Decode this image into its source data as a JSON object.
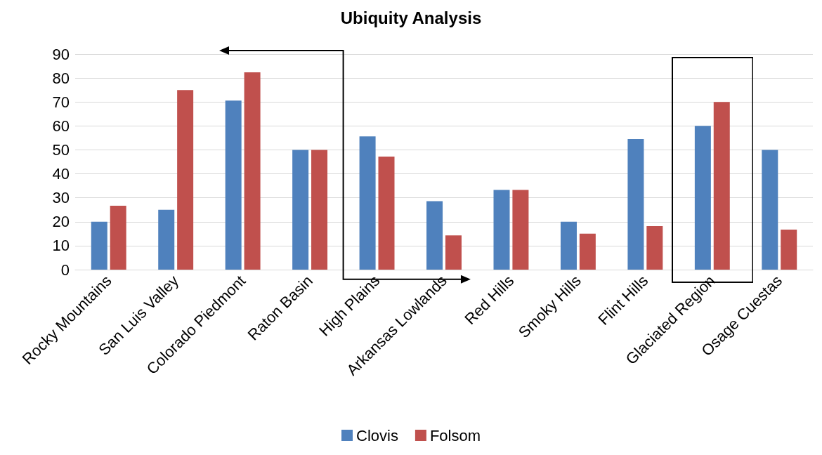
{
  "chart_data": {
    "type": "bar",
    "title": "Ubiquity Analysis",
    "categories": [
      "Rocky Mountains",
      "San Luis Valley",
      "Colorado Piedmont",
      "Raton Basin",
      "High Plains",
      "Arkansas Lowlands",
      "Red Hills",
      "Smoky Hills",
      "Flint Hills",
      "Glaciated Region",
      "Osage Cuestas"
    ],
    "series": [
      {
        "name": "Clovis",
        "color": "#4f81bd",
        "values": [
          20,
          25,
          70.6,
          50,
          55.6,
          28.6,
          33.3,
          20,
          54.5,
          60,
          50
        ]
      },
      {
        "name": "Folsom",
        "color": "#c0504d",
        "values": [
          26.7,
          75,
          82.4,
          50,
          47.2,
          14.3,
          33.3,
          15,
          18.2,
          70,
          16.7
        ]
      }
    ],
    "ylim": [
      0,
      90
    ],
    "yticks": [
      0,
      10,
      20,
      30,
      40,
      50,
      60,
      70,
      80,
      90
    ],
    "grid": "y",
    "legend": "bottom"
  }
}
